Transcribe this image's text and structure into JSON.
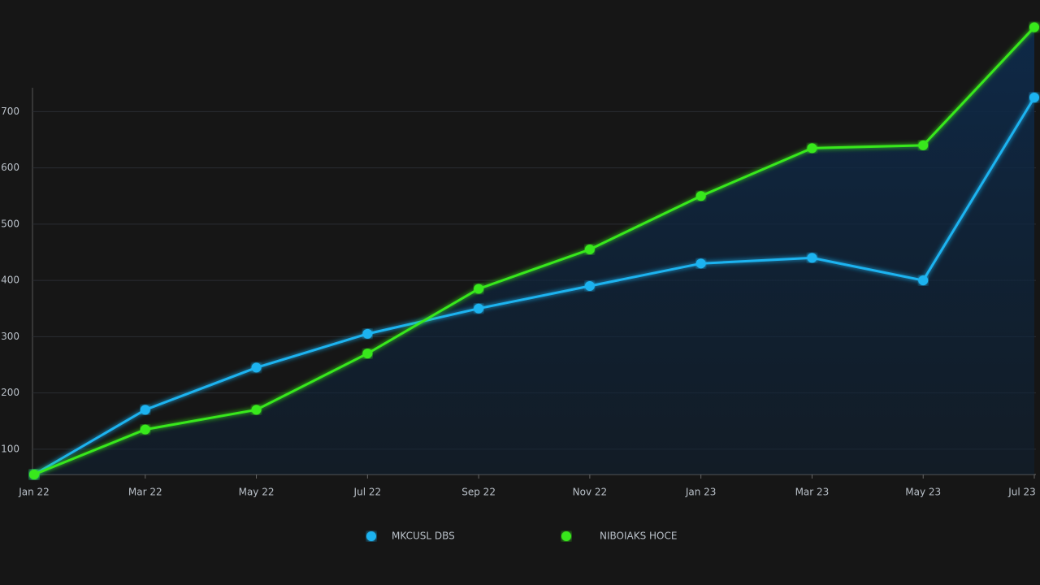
{
  "chart_data": {
    "type": "line",
    "categories": [
      "Jan 22",
      "Mar 22",
      "May 22",
      "Jul 22",
      "Sep 22",
      "Nov 22",
      "Jan 23",
      "Mar 23",
      "May 23",
      "Jul 23"
    ],
    "series": [
      {
        "name": "MKCUSL DBS",
        "color": "#1fb3f0",
        "values": [
          55,
          170,
          245,
          305,
          350,
          390,
          430,
          440,
          400,
          725
        ]
      },
      {
        "name": "NIBOIAKS HOCE",
        "color": "#39e81a",
        "values": [
          55,
          135,
          170,
          270,
          385,
          455,
          550,
          635,
          640,
          850
        ]
      }
    ],
    "ylim": [
      55,
      855
    ],
    "yticks": [
      100,
      200,
      300,
      400,
      500,
      600,
      700
    ],
    "grid": true
  }
}
